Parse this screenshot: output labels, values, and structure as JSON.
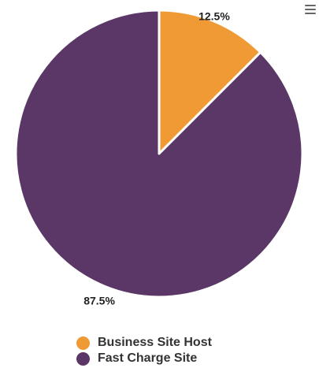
{
  "chart_data": {
    "type": "pie",
    "categories": [
      "Business Site Host",
      "Fast Charge Site"
    ],
    "values": [
      12.5,
      87.5
    ],
    "data_labels": [
      "12.5%",
      "87.5%"
    ],
    "colors": [
      "#f09a35",
      "#5b3768"
    ],
    "legend_position": "bottom",
    "title": "",
    "start_angle_deg": 0
  },
  "toolbar": {
    "menu_icon": "hamburger-menu-icon"
  },
  "legend": {
    "items": [
      {
        "label": "Business Site Host",
        "color": "#f09a35"
      },
      {
        "label": "Fast Charge Site",
        "color": "#5b3768"
      }
    ]
  }
}
